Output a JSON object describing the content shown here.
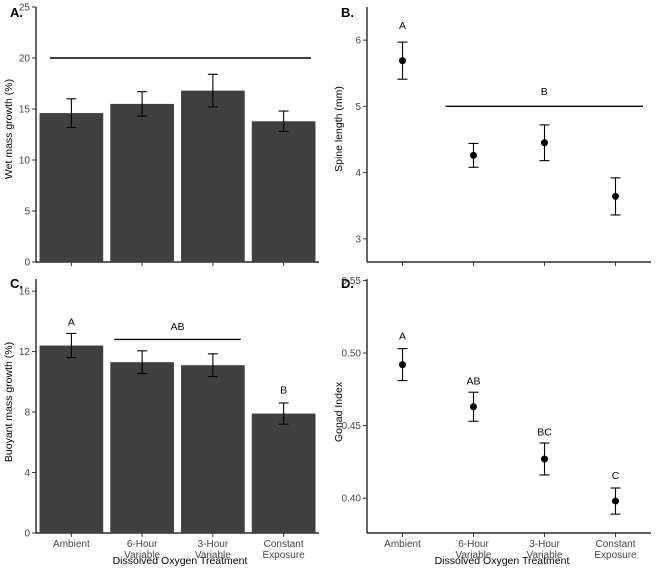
{
  "shared": {
    "xlabel": "Dissolved Oxygen Treatment"
  },
  "chart_data": [
    {
      "id": "A",
      "type": "bar",
      "panel_label": "A.",
      "title": "",
      "xlabel": "",
      "ylabel": "Wet mass growth (%)",
      "ylim": [
        0,
        25
      ],
      "yticks": [
        "0",
        "5",
        "10",
        "15",
        "20",
        "25"
      ],
      "categories": [
        "Ambient",
        "6-Hour\nVariable",
        "3-Hour\nVariable",
        "Constant\nExposure"
      ],
      "show_categories": false,
      "values": [
        14.6,
        15.5,
        16.8,
        13.8
      ],
      "errors": [
        1.4,
        1.2,
        1.6,
        1.0
      ],
      "letters": [],
      "bracket": {
        "from": 0,
        "to": 3,
        "y": 20,
        "label": ""
      },
      "bar_color": "#404040",
      "grid": false
    },
    {
      "id": "B",
      "type": "scatter",
      "panel_label": "B.",
      "title": "",
      "xlabel": "",
      "ylabel": "Spine length (mm)",
      "ylim": [
        2.65,
        6.5
      ],
      "yticks": [
        "3",
        "4",
        "5",
        "6"
      ],
      "categories": [
        "Ambient",
        "6-Hour\nVariable",
        "3-Hour\nVariable",
        "Constant\nExposure"
      ],
      "show_categories": false,
      "values": [
        5.69,
        4.26,
        4.45,
        3.64
      ],
      "errors": [
        0.28,
        0.18,
        0.27,
        0.28
      ],
      "letters": [
        {
          "index": 0,
          "label": "A",
          "y": 6.23
        }
      ],
      "bracket": {
        "from": 1,
        "to": 3,
        "y": 5.0,
        "label": "B",
        "label_y": 5.23
      },
      "grid": false
    },
    {
      "id": "C",
      "type": "bar",
      "panel_label": "C.",
      "title": "",
      "xlabel": "Dissolved Oxygen Treatment",
      "ylabel": "Buoyant mass growth (%)",
      "ylim": [
        0,
        16.8
      ],
      "yticks": [
        "0",
        "4",
        "8",
        "12",
        "16"
      ],
      "categories": [
        "Ambient",
        "6-Hour\nVariable",
        "3-Hour\nVariable",
        "Constant\nExposure"
      ],
      "show_categories": true,
      "values": [
        12.4,
        11.3,
        11.1,
        7.9
      ],
      "errors": [
        0.8,
        0.75,
        0.75,
        0.7
      ],
      "letters": [
        {
          "index": 0,
          "label": "A",
          "y": 14.0
        },
        {
          "index": 3,
          "label": "B",
          "y": 9.5
        }
      ],
      "bracket": {
        "from": 1,
        "to": 2,
        "y": 12.8,
        "label": "AB",
        "label_y": 13.7
      },
      "bar_color": "#404040",
      "grid": false
    },
    {
      "id": "D",
      "type": "scatter",
      "panel_label": "D.",
      "title": "",
      "xlabel": "Dissolved Oxygen Treatment",
      "ylabel": "Gonad Index",
      "ylim": [
        0.376,
        0.551
      ],
      "yticks": [
        "0.40",
        "0.45",
        "0.50",
        "0.55"
      ],
      "categories": [
        "Ambient",
        "6-Hour\nVariable",
        "3-Hour\nVariable",
        "Constant\nExposure"
      ],
      "show_categories": true,
      "values": [
        0.492,
        0.463,
        0.427,
        0.398
      ],
      "errors": [
        0.011,
        0.01,
        0.011,
        0.009
      ],
      "letters": [
        {
          "index": 0,
          "label": "A",
          "y": 0.512
        },
        {
          "index": 1,
          "label": "AB",
          "y": 0.481
        },
        {
          "index": 2,
          "label": "BC",
          "y": 0.446
        },
        {
          "index": 3,
          "label": "C",
          "y": 0.416
        }
      ],
      "bracket": null,
      "grid": false
    }
  ]
}
